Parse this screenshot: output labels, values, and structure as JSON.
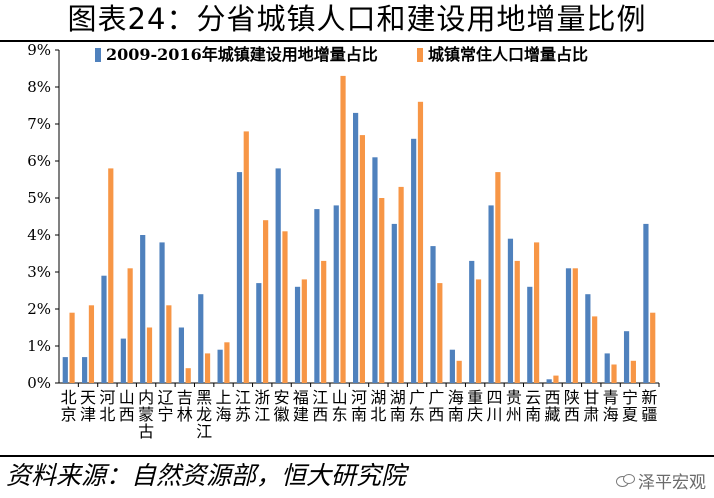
{
  "title": "图表24：分省城镇人口和建设用地增量比例",
  "source": "资料来源：自然资源部，恒大研究院",
  "watermark": "泽平宏观",
  "colors": {
    "series1": "#4f81bd",
    "series2": "#f79646",
    "axis": "#000000"
  },
  "chart_data": {
    "type": "bar",
    "categories": [
      "北京",
      "天津",
      "河北",
      "山西",
      "内蒙古",
      "辽宁",
      "吉林",
      "黑龙江",
      "上海",
      "江苏",
      "浙江",
      "安徽",
      "福建",
      "江西",
      "山东",
      "河南",
      "湖北",
      "湖南",
      "广东",
      "广西",
      "海南",
      "重庆",
      "四川",
      "贵州",
      "云南",
      "西藏",
      "陕西",
      "甘肃",
      "青海",
      "宁夏",
      "新疆"
    ],
    "series": [
      {
        "name": "2009-2016年城镇建设用地增量占比",
        "values": [
          0.7,
          0.7,
          2.9,
          1.2,
          4.0,
          3.8,
          1.5,
          2.4,
          0.9,
          5.7,
          2.7,
          5.8,
          2.6,
          4.7,
          4.8,
          7.3,
          6.1,
          4.3,
          6.6,
          3.7,
          0.9,
          3.3,
          4.8,
          3.9,
          2.6,
          0.1,
          3.1,
          2.4,
          0.8,
          1.4,
          4.3
        ]
      },
      {
        "name": "城镇常住人口增量占比",
        "values": [
          1.9,
          2.1,
          5.8,
          3.1,
          1.5,
          2.1,
          0.4,
          0.8,
          1.1,
          6.8,
          4.4,
          4.1,
          2.8,
          3.3,
          8.3,
          6.7,
          5.0,
          5.3,
          7.6,
          2.7,
          0.6,
          2.8,
          5.7,
          3.3,
          3.8,
          0.2,
          3.1,
          1.8,
          0.5,
          0.6,
          1.9
        ]
      }
    ],
    "y_ticks": [
      "0%",
      "1%",
      "2%",
      "3%",
      "4%",
      "5%",
      "6%",
      "7%",
      "8%",
      "9%"
    ],
    "ylim": [
      0,
      9
    ],
    "legend_position": "top"
  }
}
